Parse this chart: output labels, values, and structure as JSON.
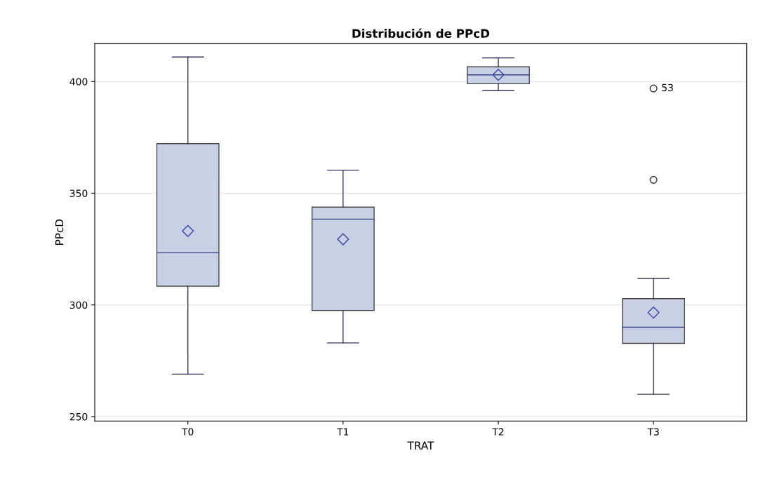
{
  "chart_data": {
    "type": "box",
    "title": "Distribución de PPcD",
    "xlabel": "TRAT",
    "ylabel": "PPcD",
    "categories": [
      "T0",
      "T1",
      "T2",
      "T3"
    ],
    "boxes": [
      {
        "low": 269,
        "q1": 308.4,
        "median": 323.4,
        "q3": 372.2,
        "high": 411,
        "mean": 333.1
      },
      {
        "low": 283,
        "q1": 297.5,
        "median": 338.4,
        "q3": 343.8,
        "high": 360.3,
        "mean": 329.4
      },
      {
        "low": 396,
        "q1": 399,
        "median": 403,
        "q3": 406.6,
        "high": 410.6,
        "mean": 403
      },
      {
        "low": 260,
        "q1": 282.8,
        "median": 290,
        "q3": 302.8,
        "high": 311.9,
        "mean": 296.6,
        "outliers": [
          396.9,
          356
        ]
      }
    ],
    "color": "#c9d0e6",
    "ylim": [
      248,
      417
    ],
    "yticks": [
      250,
      300,
      350,
      400
    ],
    "grid": "y",
    "annotations": [
      "53"
    ]
  }
}
